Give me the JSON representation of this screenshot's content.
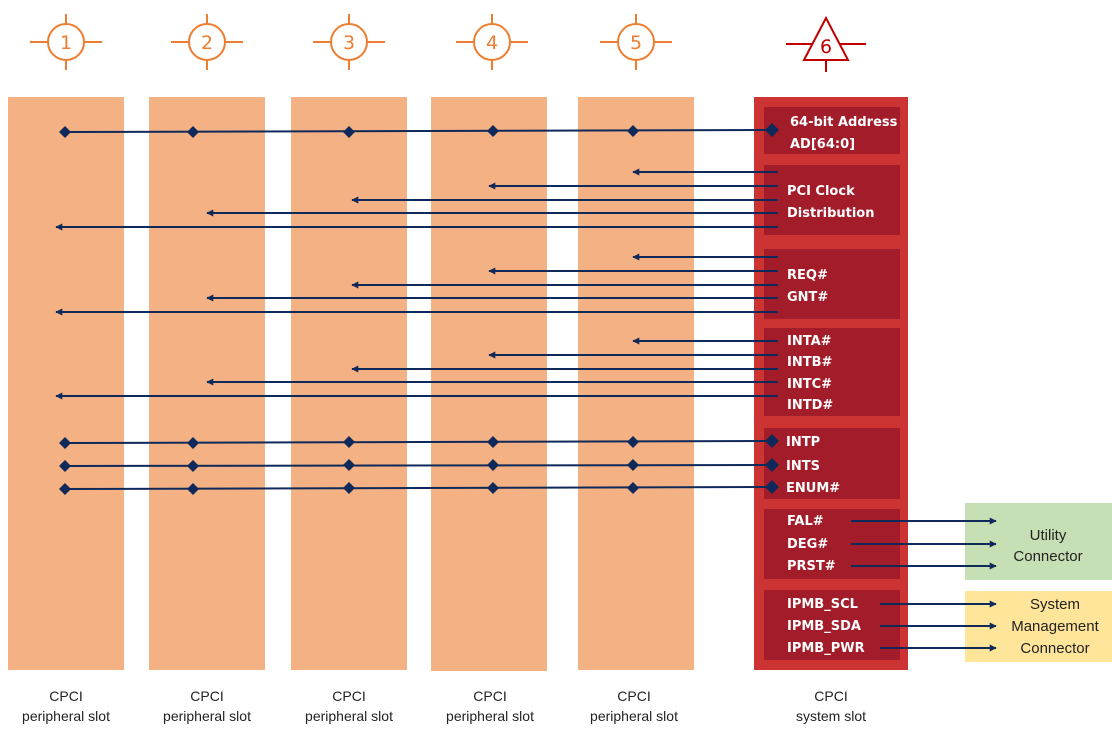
{
  "colors": {
    "peripheral_slot": "#f4b183",
    "system_slot_outer": "#cc3333",
    "system_slot_group": "#a31c2a",
    "line": "#0f2a5a",
    "utility_box": "#c6dfb4",
    "sysmgmt_box": "#ffe599",
    "marker": "#ed7d31",
    "system_marker": "#c00000"
  },
  "slots": [
    {
      "number": "1",
      "label_line1": "CPCI",
      "label_line2": "peripheral slot"
    },
    {
      "number": "2",
      "label_line1": "CPCI",
      "label_line2": "peripheral slot"
    },
    {
      "number": "3",
      "label_line1": "CPCI",
      "label_line2": "peripheral slot"
    },
    {
      "number": "4",
      "label_line1": "CPCI",
      "label_line2": "peripheral slot"
    },
    {
      "number": "5",
      "label_line1": "CPCI",
      "label_line2": "peripheral slot"
    }
  ],
  "system_slot": {
    "number": "6",
    "label_line1": "CPCI",
    "label_line2": "system slot"
  },
  "signal_groups": [
    {
      "id": "address",
      "labels": [
        "64-bit Address",
        "AD[64:0]"
      ]
    },
    {
      "id": "clock",
      "labels": [
        "PCI Clock",
        "Distribution"
      ]
    },
    {
      "id": "arbitration",
      "labels": [
        "REQ#",
        "GNT#"
      ]
    },
    {
      "id": "interrupts",
      "labels": [
        "INTA#",
        "INTB#",
        "INTC#",
        "INTD#"
      ]
    },
    {
      "id": "bused",
      "labels": [
        "INTP",
        "INTS",
        "ENUM#"
      ]
    },
    {
      "id": "utility",
      "labels": [
        "FAL#",
        "DEG#",
        "PRST#"
      ]
    },
    {
      "id": "ipmb",
      "labels": [
        "IPMB_SCL",
        "IPMB_SDA",
        "IPMB_PWR"
      ]
    }
  ],
  "connectors": {
    "utility": {
      "lines": [
        "Utility",
        "Connector"
      ]
    },
    "system_management": {
      "lines": [
        "System",
        "Management",
        "Connector"
      ]
    }
  }
}
